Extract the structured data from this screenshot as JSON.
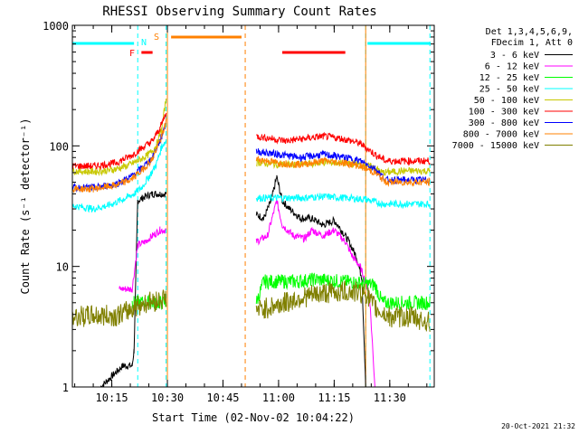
{
  "chart_data": {
    "type": "line",
    "title": "RHESSI Observing Summary Count Rates",
    "xlabel": "Start Time (02-Nov-02 10:04:22)",
    "ylabel": "Count Rate (s⁻¹ detector⁻¹)",
    "yscale": "log",
    "xlim": [
      "10:04:22",
      "11:42:00"
    ],
    "ylim": [
      1,
      1000
    ],
    "x_tick_labels": [
      "10:15",
      "10:30",
      "10:45",
      "11:00",
      "11:15",
      "11:30"
    ],
    "y_tick_labels": [
      "1",
      "10",
      "100",
      "1000"
    ],
    "legend_position": "right",
    "legend_header": [
      "Det 1,3,4,5,6,9,",
      "FDecim 1, Att 0"
    ],
    "timestamp": "20-Oct-2021 21:32",
    "flag_labels": {
      "F": "F",
      "N": "N",
      "S": "S"
    },
    "gaps": [
      {
        "start": "10:30:00",
        "end": "10:54:00"
      },
      {
        "start": "11:23:30",
        "end": "11:24:30"
      }
    ],
    "night_boundaries": [
      "10:22:00",
      "10:29:40",
      "10:51:00",
      "11:23:30",
      "11:40:50"
    ],
    "flag_bars": [
      {
        "flag": "F",
        "start": "10:23:00",
        "end": "10:26:00",
        "color": "#ff0000"
      },
      {
        "flag": "S",
        "start": "10:31:00",
        "end": "10:50:00",
        "color": "#ff8000"
      },
      {
        "flag": "",
        "start": "11:01:00",
        "end": "11:18:00",
        "color": "#ff0000"
      },
      {
        "flag": "",
        "start": "10:04:22",
        "end": "10:21:00",
        "color": "#00ffff"
      },
      {
        "flag": "",
        "start": "11:24:00",
        "end": "11:41:00",
        "color": "#00ffff"
      }
    ],
    "series": [
      {
        "name": "3 - 6 keV",
        "color": "#000000",
        "points": [
          [
            "10:12:00",
            1
          ],
          [
            "10:18:00",
            1.5
          ],
          [
            "10:20:30",
            1.5
          ],
          [
            "10:21:00",
            2
          ],
          [
            "10:22:00",
            35
          ],
          [
            "10:24:00",
            38
          ],
          [
            "10:26:00",
            40
          ],
          [
            "10:28:00",
            40
          ],
          [
            "10:29:40",
            40
          ],
          [
            "10:54:00",
            27
          ],
          [
            "10:56:00",
            25
          ],
          [
            "10:58:00",
            35
          ],
          [
            "10:59:30",
            55
          ],
          [
            "11:01:00",
            35
          ],
          [
            "11:03:00",
            30
          ],
          [
            "11:06:00",
            25
          ],
          [
            "11:09:00",
            25
          ],
          [
            "11:12:00",
            22
          ],
          [
            "11:15:00",
            24
          ],
          [
            "11:17:00",
            20
          ],
          [
            "11:19:00",
            16
          ],
          [
            "11:21:00",
            12
          ],
          [
            "11:22:30",
            8
          ],
          [
            "11:23:30",
            1
          ]
        ]
      },
      {
        "name": "6 - 12 keV",
        "color": "#ff00ff",
        "points": [
          [
            "10:17:00",
            6.5
          ],
          [
            "10:20:30",
            6.5
          ],
          [
            "10:22:00",
            15
          ],
          [
            "10:24:00",
            16
          ],
          [
            "10:26:00",
            18
          ],
          [
            "10:28:00",
            20
          ],
          [
            "10:29:40",
            20
          ],
          [
            "10:54:00",
            16
          ],
          [
            "10:57:00",
            18
          ],
          [
            "10:59:30",
            35
          ],
          [
            "11:01:00",
            22
          ],
          [
            "11:04:00",
            18
          ],
          [
            "11:07:00",
            17
          ],
          [
            "11:09:00",
            20
          ],
          [
            "11:12:00",
            18
          ],
          [
            "11:15:00",
            20
          ],
          [
            "11:18:00",
            16
          ],
          [
            "11:20:00",
            12
          ],
          [
            "11:22:00",
            10
          ],
          [
            "11:24:30",
            6
          ],
          [
            "11:26:00",
            1
          ]
        ]
      },
      {
        "name": "12 - 25 keV",
        "color": "#00ff00",
        "points": [
          [
            "10:04:22",
            5
          ],
          [
            "10:20:30",
            5
          ],
          [
            "10:21:00",
            5
          ],
          [
            "10:29:40",
            5
          ],
          [
            "10:54:00",
            5
          ],
          [
            "10:56:00",
            7.5
          ],
          [
            "11:00:00",
            7.5
          ],
          [
            "11:05:00",
            7.5
          ],
          [
            "11:10:00",
            7.8
          ],
          [
            "11:15:00",
            7.6
          ],
          [
            "11:20:00",
            7.4
          ],
          [
            "11:23:30",
            7.2
          ],
          [
            "11:26:00",
            7
          ],
          [
            "11:28:00",
            5
          ],
          [
            "11:40:50",
            5
          ]
        ]
      },
      {
        "name": "25 - 50 keV",
        "color": "#00ffff",
        "points": [
          [
            "10:04:22",
            32
          ],
          [
            "10:10:00",
            30
          ],
          [
            "10:14:00",
            32
          ],
          [
            "10:18:00",
            36
          ],
          [
            "10:21:00",
            40
          ],
          [
            "10:23:00",
            45
          ],
          [
            "10:25:00",
            55
          ],
          [
            "10:27:00",
            70
          ],
          [
            "10:28:30",
            100
          ],
          [
            "10:29:40",
            110
          ],
          [
            "10:54:00",
            37
          ],
          [
            "11:00:00",
            37
          ],
          [
            "11:06:00",
            37
          ],
          [
            "11:12:00",
            38
          ],
          [
            "11:18:00",
            37
          ],
          [
            "11:23:30",
            36
          ],
          [
            "11:28:00",
            33
          ],
          [
            "11:34:00",
            33
          ],
          [
            "11:40:50",
            33
          ]
        ]
      },
      {
        "name": "50 - 100 keV",
        "color": "#c8c800",
        "points": [
          [
            "10:04:22",
            62
          ],
          [
            "10:10:00",
            61
          ],
          [
            "10:15:00",
            63
          ],
          [
            "10:19:00",
            68
          ],
          [
            "10:22:00",
            75
          ],
          [
            "10:25:00",
            85
          ],
          [
            "10:27:00",
            100
          ],
          [
            "10:28:30",
            140
          ],
          [
            "10:29:40",
            250
          ],
          [
            "10:54:00",
            73
          ],
          [
            "11:00:00",
            70
          ],
          [
            "11:06:00",
            70
          ],
          [
            "11:12:00",
            73
          ],
          [
            "11:18:00",
            72
          ],
          [
            "11:22:00",
            70
          ],
          [
            "11:26:00",
            66
          ],
          [
            "11:28:00",
            60
          ],
          [
            "11:34:00",
            62
          ],
          [
            "11:40:50",
            62
          ]
        ]
      },
      {
        "name": "100 - 300 keV",
        "color": "#ff0000",
        "points": [
          [
            "10:04:22",
            68
          ],
          [
            "10:10:00",
            68
          ],
          [
            "10:16:00",
            72
          ],
          [
            "10:20:00",
            82
          ],
          [
            "10:23:00",
            95
          ],
          [
            "10:26:00",
            110
          ],
          [
            "10:28:00",
            140
          ],
          [
            "10:29:40",
            190
          ],
          [
            "10:54:00",
            120
          ],
          [
            "10:58:00",
            115
          ],
          [
            "11:02:00",
            110
          ],
          [
            "11:07:00",
            115
          ],
          [
            "11:12:00",
            120
          ],
          [
            "11:17:00",
            115
          ],
          [
            "11:22:00",
            105
          ],
          [
            "11:26:00",
            85
          ],
          [
            "11:29:00",
            75
          ],
          [
            "11:34:00",
            75
          ],
          [
            "11:40:50",
            75
          ]
        ]
      },
      {
        "name": "300 - 800 keV",
        "color": "#0000ff",
        "points": [
          [
            "10:04:22",
            45
          ],
          [
            "10:10:00",
            45
          ],
          [
            "10:16:00",
            48
          ],
          [
            "10:20:00",
            55
          ],
          [
            "10:23:00",
            65
          ],
          [
            "10:26:00",
            80
          ],
          [
            "10:28:30",
            120
          ],
          [
            "10:29:40",
            160
          ],
          [
            "10:54:00",
            90
          ],
          [
            "11:00:00",
            85
          ],
          [
            "11:06:00",
            80
          ],
          [
            "11:12:00",
            85
          ],
          [
            "11:18:00",
            80
          ],
          [
            "11:22:00",
            75
          ],
          [
            "11:26:00",
            65
          ],
          [
            "11:29:00",
            52
          ],
          [
            "11:34:00",
            52
          ],
          [
            "11:40:50",
            52
          ]
        ]
      },
      {
        "name": "800 - 7000 keV",
        "color": "#ff8000",
        "points": [
          [
            "10:04:22",
            44
          ],
          [
            "10:10:00",
            44
          ],
          [
            "10:16:00",
            47
          ],
          [
            "10:20:00",
            52
          ],
          [
            "10:23:00",
            62
          ],
          [
            "10:26:00",
            78
          ],
          [
            "10:28:30",
            120
          ],
          [
            "10:29:40",
            160
          ],
          [
            "10:54:00",
            78
          ],
          [
            "11:00:00",
            72
          ],
          [
            "11:06:00",
            70
          ],
          [
            "11:12:00",
            75
          ],
          [
            "11:18:00",
            72
          ],
          [
            "11:22:00",
            68
          ],
          [
            "11:26:00",
            60
          ],
          [
            "11:29:00",
            50
          ],
          [
            "11:34:00",
            50
          ],
          [
            "11:40:50",
            50
          ]
        ]
      },
      {
        "name": "7000 - 15000 keV",
        "color": "#808000",
        "points": [
          [
            "10:04:22",
            3.8
          ],
          [
            "10:10:00",
            3.9
          ],
          [
            "10:16:00",
            3.9
          ],
          [
            "10:19:00",
            4.2
          ],
          [
            "10:21:00",
            4.6
          ],
          [
            "10:24:00",
            5
          ],
          [
            "10:27:00",
            5.2
          ],
          [
            "10:29:40",
            5.5
          ],
          [
            "10:54:00",
            4.3
          ],
          [
            "11:00:00",
            4.8
          ],
          [
            "11:06:00",
            5.5
          ],
          [
            "11:12:00",
            6
          ],
          [
            "11:18:00",
            6.2
          ],
          [
            "11:23:30",
            6
          ],
          [
            "11:26:00",
            4.5
          ],
          [
            "11:30:00",
            3.8
          ],
          [
            "11:36:00",
            3.8
          ],
          [
            "11:40:50",
            3.4
          ]
        ]
      }
    ]
  }
}
